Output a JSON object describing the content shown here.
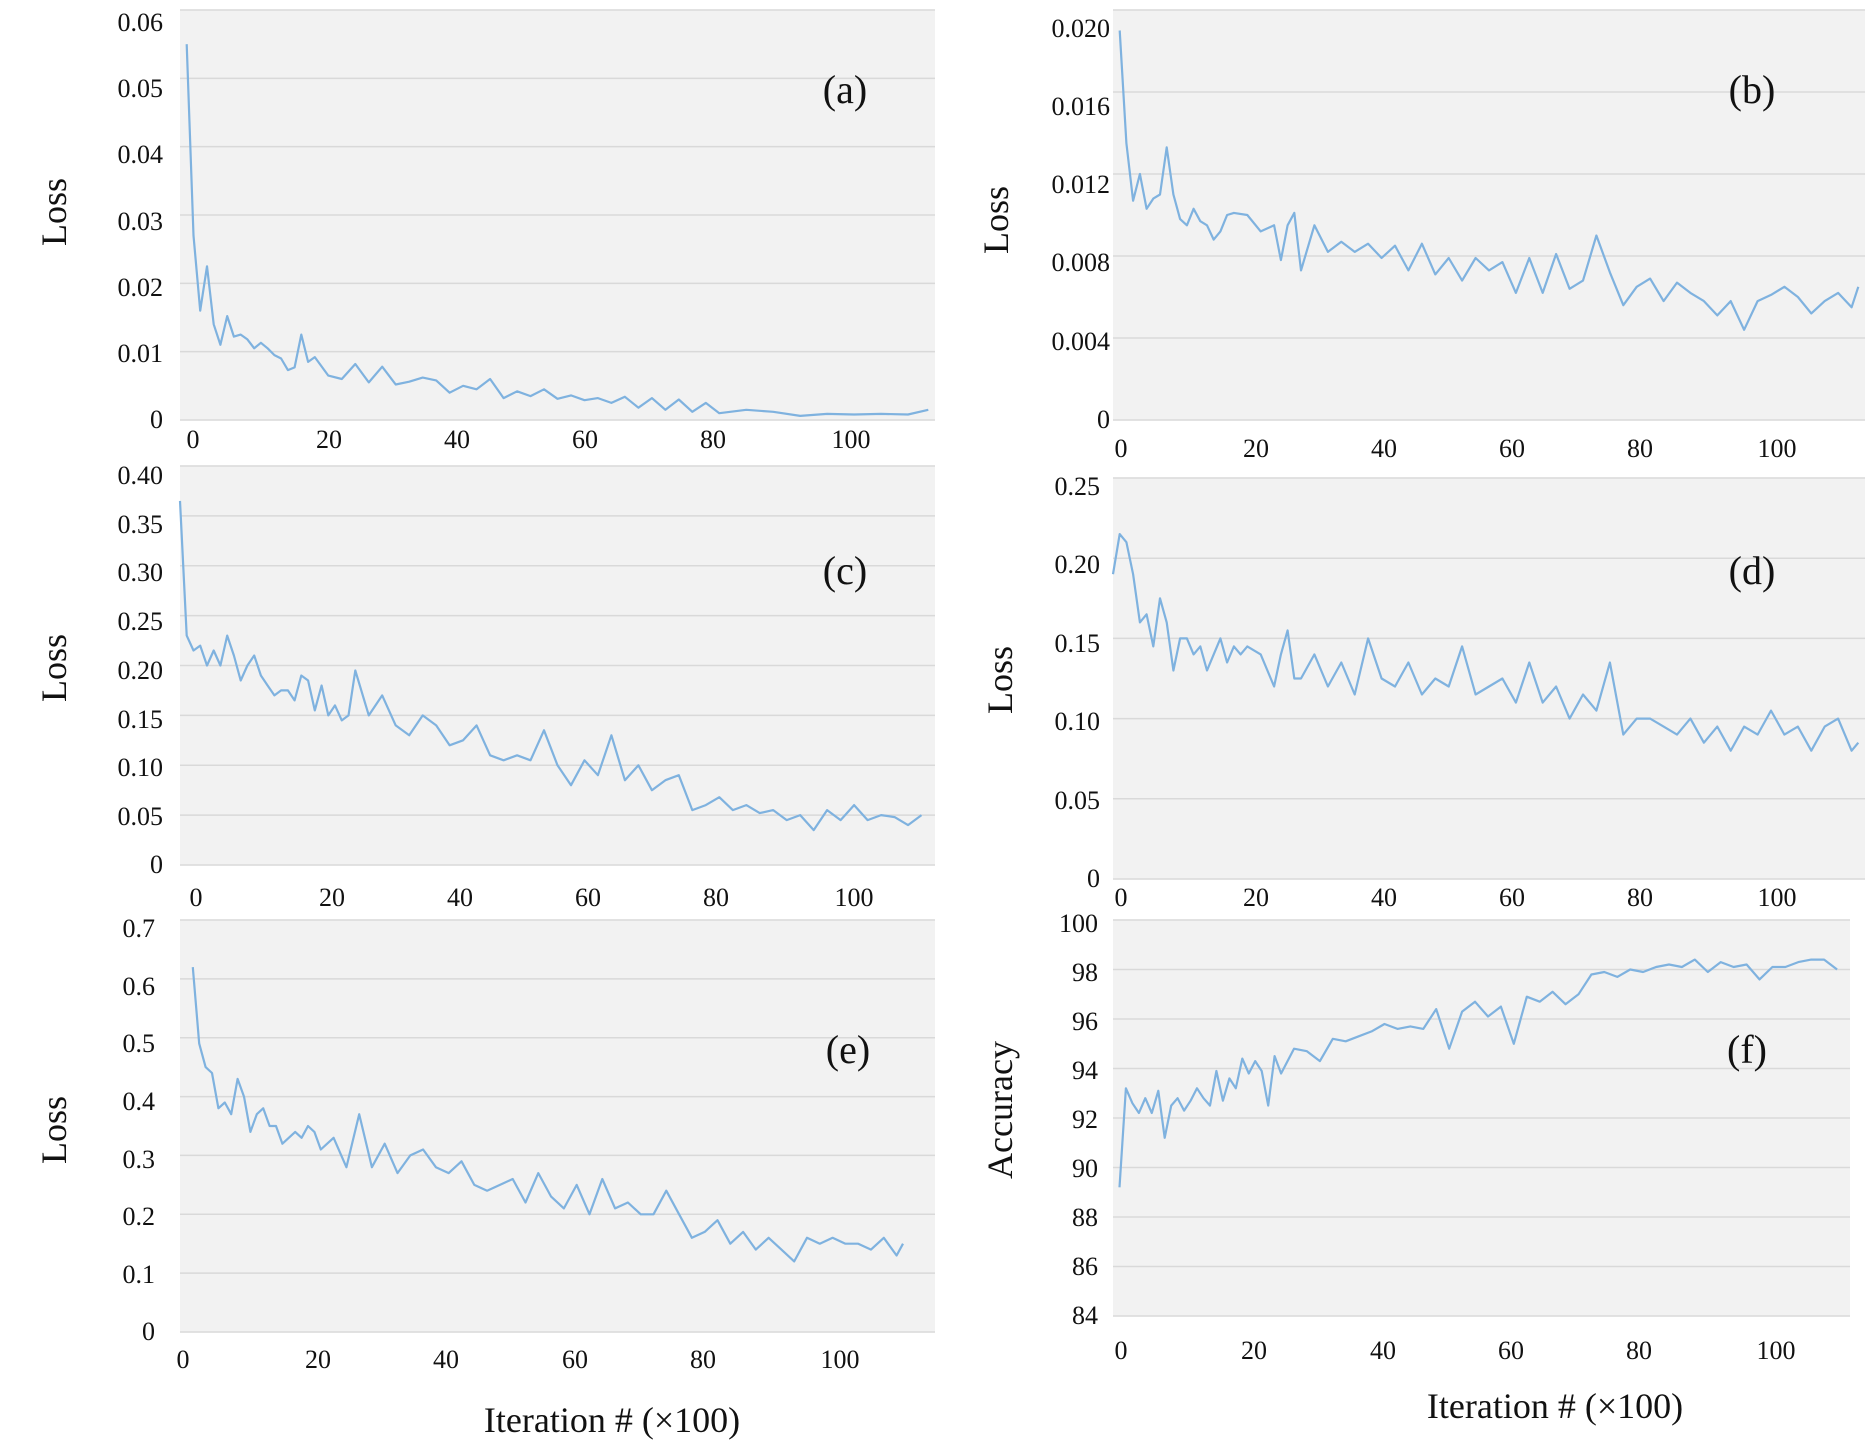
{
  "colors": {
    "plot_background": "#f2f2f2",
    "gridline": "#d9d9d9",
    "series_line": "#7fb2df"
  },
  "chart_data": [
    {
      "type": "line",
      "panel_label": "(a)",
      "ylabel": "Loss",
      "xlabel": "",
      "xlim": [
        0,
        112
      ],
      "ylim": [
        0,
        0.06
      ],
      "xticks": [
        0,
        20,
        40,
        60,
        80,
        100
      ],
      "xtick_labels": [
        "0",
        "20",
        "40",
        "60",
        "80",
        "100"
      ],
      "yticks": [
        0,
        0.01,
        0.02,
        0.03,
        0.04,
        0.05,
        0.06
      ],
      "ytick_labels": [
        "0",
        "0.01",
        "0.02",
        "0.03",
        "0.04",
        "0.05",
        "0.06"
      ],
      "grid": true,
      "series": [
        {
          "x": [
            1,
            2,
            3,
            4,
            5,
            6,
            7,
            8,
            9,
            10,
            11,
            12,
            13,
            14,
            15,
            16,
            17,
            18,
            19,
            20,
            22,
            24,
            26,
            28,
            30,
            32,
            34,
            36,
            38,
            40,
            42,
            44,
            46,
            48,
            50,
            52,
            54,
            56,
            58,
            60,
            62,
            64,
            66,
            68,
            70,
            72,
            74,
            76,
            78,
            80,
            84,
            88,
            92,
            96,
            100,
            104,
            108,
            111
          ],
          "y": [
            0.055,
            0.027,
            0.016,
            0.0225,
            0.014,
            0.011,
            0.0152,
            0.0122,
            0.0125,
            0.0118,
            0.0105,
            0.0113,
            0.0105,
            0.0095,
            0.009,
            0.0073,
            0.0077,
            0.0125,
            0.0085,
            0.0092,
            0.0065,
            0.006,
            0.0082,
            0.0055,
            0.0078,
            0.0052,
            0.0056,
            0.0062,
            0.0058,
            0.004,
            0.005,
            0.0045,
            0.006,
            0.0032,
            0.0042,
            0.0035,
            0.0045,
            0.0031,
            0.0036,
            0.0029,
            0.0032,
            0.0025,
            0.0034,
            0.0018,
            0.0032,
            0.0015,
            0.003,
            0.0012,
            0.0025,
            0.001,
            0.0015,
            0.0012,
            0.0006,
            0.0009,
            0.0008,
            0.0009,
            0.0008,
            0.0015
          ]
        }
      ]
    },
    {
      "type": "line",
      "panel_label": "(b)",
      "ylabel": "Loss",
      "xlabel": "",
      "xlim": [
        0,
        112
      ],
      "ylim": [
        0,
        0.02
      ],
      "xticks": [
        0,
        20,
        40,
        60,
        80,
        100
      ],
      "xtick_labels": [
        "0",
        "20",
        "40",
        "60",
        "80",
        "100"
      ],
      "yticks": [
        0,
        0.004,
        0.008,
        0.012,
        0.016,
        0.02
      ],
      "ytick_labels": [
        "0",
        "0.004",
        "0.008",
        "0.012",
        "0.016",
        "0.020"
      ],
      "grid": true,
      "series": [
        {
          "x": [
            1,
            2,
            3,
            4,
            5,
            6,
            7,
            8,
            9,
            10,
            11,
            12,
            13,
            14,
            15,
            16,
            17,
            18,
            20,
            22,
            24,
            25,
            26,
            27,
            28,
            30,
            32,
            34,
            36,
            38,
            40,
            42,
            44,
            46,
            48,
            50,
            52,
            54,
            56,
            58,
            60,
            62,
            64,
            66,
            68,
            70,
            72,
            74,
            76,
            78,
            80,
            82,
            84,
            86,
            88,
            90,
            92,
            94,
            96,
            98,
            100,
            102,
            104,
            106,
            108,
            110,
            111
          ],
          "y": [
            0.019,
            0.0135,
            0.0107,
            0.012,
            0.0103,
            0.0108,
            0.011,
            0.0133,
            0.011,
            0.0098,
            0.0095,
            0.0103,
            0.0097,
            0.0095,
            0.0088,
            0.0092,
            0.01,
            0.0101,
            0.01,
            0.0092,
            0.0095,
            0.0078,
            0.0095,
            0.0101,
            0.0073,
            0.0095,
            0.0082,
            0.0087,
            0.0082,
            0.0086,
            0.0079,
            0.0085,
            0.0073,
            0.0086,
            0.0071,
            0.0079,
            0.0068,
            0.0079,
            0.0073,
            0.0077,
            0.0062,
            0.0079,
            0.0062,
            0.0081,
            0.0064,
            0.0068,
            0.009,
            0.0072,
            0.0056,
            0.0065,
            0.0069,
            0.0058,
            0.0067,
            0.0062,
            0.0058,
            0.0051,
            0.0058,
            0.0044,
            0.0058,
            0.0061,
            0.0065,
            0.006,
            0.0052,
            0.0058,
            0.0062,
            0.0055,
            0.0065
          ]
        }
      ]
    },
    {
      "type": "line",
      "panel_label": "(c)",
      "ylabel": "Loss",
      "xlabel": "",
      "xlim": [
        0,
        112
      ],
      "ylim": [
        0,
        0.4
      ],
      "xticks": [
        0,
        20,
        40,
        60,
        80,
        100
      ],
      "xtick_labels": [
        "0",
        "20",
        "40",
        "60",
        "80",
        "100"
      ],
      "yticks": [
        0,
        0.05,
        0.1,
        0.15,
        0.2,
        0.25,
        0.3,
        0.35,
        0.4
      ],
      "ytick_labels": [
        "0",
        "0.05",
        "0.10",
        "0.15",
        "0.20",
        "0.25",
        "0.30",
        "0.35",
        "0.40"
      ],
      "grid": true,
      "series": [
        {
          "x": [
            0,
            1,
            2,
            3,
            4,
            5,
            6,
            7,
            8,
            9,
            10,
            11,
            12,
            13,
            14,
            15,
            16,
            17,
            18,
            19,
            20,
            21,
            22,
            23,
            24,
            25,
            26,
            28,
            30,
            32,
            34,
            36,
            38,
            40,
            42,
            44,
            46,
            48,
            50,
            52,
            54,
            56,
            58,
            60,
            62,
            64,
            66,
            68,
            70,
            72,
            74,
            76,
            78,
            80,
            82,
            84,
            86,
            88,
            90,
            92,
            94,
            96,
            98,
            100,
            102,
            104,
            106,
            108,
            110
          ],
          "y": [
            0.365,
            0.23,
            0.215,
            0.22,
            0.2,
            0.215,
            0.2,
            0.23,
            0.21,
            0.185,
            0.2,
            0.21,
            0.19,
            0.18,
            0.17,
            0.175,
            0.175,
            0.165,
            0.19,
            0.185,
            0.155,
            0.18,
            0.15,
            0.16,
            0.145,
            0.15,
            0.195,
            0.15,
            0.17,
            0.14,
            0.13,
            0.15,
            0.14,
            0.12,
            0.125,
            0.14,
            0.11,
            0.105,
            0.11,
            0.105,
            0.135,
            0.1,
            0.08,
            0.105,
            0.09,
            0.13,
            0.085,
            0.1,
            0.075,
            0.085,
            0.09,
            0.055,
            0.06,
            0.068,
            0.055,
            0.06,
            0.052,
            0.055,
            0.045,
            0.05,
            0.035,
            0.055,
            0.045,
            0.06,
            0.045,
            0.05,
            0.048,
            0.04,
            0.05
          ]
        }
      ]
    },
    {
      "type": "line",
      "panel_label": "(d)",
      "ylabel": "Loss",
      "xlabel": "",
      "xlim": [
        0,
        112
      ],
      "ylim": [
        0,
        0.25
      ],
      "xticks": [
        0,
        20,
        40,
        60,
        80,
        100
      ],
      "xtick_labels": [
        "0",
        "20",
        "40",
        "60",
        "80",
        "100"
      ],
      "yticks": [
        0,
        0.05,
        0.1,
        0.15,
        0.2,
        0.25
      ],
      "ytick_labels": [
        "0",
        "0.05",
        "0.10",
        "0.15",
        "0.20",
        "0.25"
      ],
      "grid": true,
      "series": [
        {
          "x": [
            0,
            1,
            2,
            3,
            4,
            5,
            6,
            7,
            8,
            9,
            10,
            11,
            12,
            13,
            14,
            15,
            16,
            17,
            18,
            19,
            20,
            22,
            24,
            25,
            26,
            27,
            28,
            30,
            32,
            34,
            36,
            38,
            40,
            42,
            44,
            46,
            48,
            50,
            52,
            54,
            56,
            58,
            60,
            62,
            64,
            66,
            68,
            70,
            72,
            74,
            76,
            78,
            80,
            82,
            84,
            86,
            88,
            90,
            92,
            94,
            96,
            98,
            100,
            102,
            104,
            106,
            108,
            110,
            111
          ],
          "y": [
            0.19,
            0.215,
            0.21,
            0.19,
            0.16,
            0.165,
            0.145,
            0.175,
            0.16,
            0.13,
            0.15,
            0.15,
            0.14,
            0.145,
            0.13,
            0.14,
            0.15,
            0.135,
            0.145,
            0.14,
            0.145,
            0.14,
            0.12,
            0.14,
            0.155,
            0.125,
            0.125,
            0.14,
            0.12,
            0.135,
            0.115,
            0.15,
            0.125,
            0.12,
            0.135,
            0.115,
            0.125,
            0.12,
            0.145,
            0.115,
            0.12,
            0.125,
            0.11,
            0.135,
            0.11,
            0.12,
            0.1,
            0.115,
            0.105,
            0.135,
            0.09,
            0.1,
            0.1,
            0.095,
            0.09,
            0.1,
            0.085,
            0.095,
            0.08,
            0.095,
            0.09,
            0.105,
            0.09,
            0.095,
            0.08,
            0.095,
            0.1,
            0.08,
            0.085
          ]
        }
      ]
    },
    {
      "type": "line",
      "panel_label": "(e)",
      "ylabel": "Loss",
      "xlabel": "Iteration # (×100)",
      "xlim": [
        0,
        118
      ],
      "ylim": [
        0,
        0.7
      ],
      "xticks": [
        0,
        20,
        40,
        60,
        80,
        100
      ],
      "xtick_labels": [
        "0",
        "20",
        "40",
        "60",
        "80",
        "100"
      ],
      "yticks": [
        0,
        0.1,
        0.2,
        0.3,
        0.4,
        0.5,
        0.6,
        0.7
      ],
      "ytick_labels": [
        "0",
        "0.1",
        "0.2",
        "0.3",
        "0.4",
        "0.5",
        "0.6",
        "0.7"
      ],
      "grid": true,
      "series": [
        {
          "x": [
            2,
            3,
            4,
            5,
            6,
            7,
            8,
            9,
            10,
            11,
            12,
            13,
            14,
            15,
            16,
            17,
            18,
            19,
            20,
            21,
            22,
            24,
            26,
            28,
            30,
            32,
            34,
            36,
            38,
            40,
            42,
            44,
            46,
            48,
            50,
            52,
            54,
            56,
            58,
            60,
            62,
            64,
            66,
            68,
            70,
            72,
            74,
            76,
            78,
            80,
            82,
            84,
            86,
            88,
            90,
            92,
            94,
            96,
            98,
            100,
            102,
            104,
            106,
            108,
            110,
            112,
            113
          ],
          "y": [
            0.62,
            0.49,
            0.45,
            0.44,
            0.38,
            0.39,
            0.37,
            0.43,
            0.4,
            0.34,
            0.37,
            0.38,
            0.35,
            0.35,
            0.32,
            0.33,
            0.34,
            0.33,
            0.35,
            0.34,
            0.31,
            0.33,
            0.28,
            0.37,
            0.28,
            0.32,
            0.27,
            0.3,
            0.31,
            0.28,
            0.27,
            0.29,
            0.25,
            0.24,
            0.25,
            0.26,
            0.22,
            0.27,
            0.23,
            0.21,
            0.25,
            0.2,
            0.26,
            0.21,
            0.22,
            0.2,
            0.2,
            0.24,
            0.2,
            0.16,
            0.17,
            0.19,
            0.15,
            0.17,
            0.14,
            0.16,
            0.14,
            0.12,
            0.16,
            0.15,
            0.16,
            0.15,
            0.15,
            0.14,
            0.16,
            0.13,
            0.15
          ]
        }
      ]
    },
    {
      "type": "line",
      "panel_label": "(f)",
      "ylabel": "Accuracy",
      "xlabel": "Iteration # (×100)",
      "xlim": [
        0,
        114
      ],
      "ylim": [
        84,
        100
      ],
      "xticks": [
        0,
        20,
        40,
        60,
        80,
        100
      ],
      "xtick_labels": [
        "0",
        "20",
        "40",
        "60",
        "80",
        "100"
      ],
      "yticks": [
        84,
        86,
        88,
        90,
        92,
        94,
        96,
        98,
        100
      ],
      "ytick_labels": [
        "84",
        "86",
        "88",
        "90",
        "92",
        "94",
        "96",
        "98",
        "100"
      ],
      "grid": true,
      "series": [
        {
          "x": [
            1,
            2,
            3,
            4,
            5,
            6,
            7,
            8,
            9,
            10,
            11,
            12,
            13,
            14,
            15,
            16,
            17,
            18,
            19,
            20,
            21,
            22,
            23,
            24,
            25,
            26,
            28,
            30,
            32,
            34,
            36,
            38,
            40,
            42,
            44,
            46,
            48,
            50,
            52,
            54,
            56,
            58,
            60,
            62,
            64,
            66,
            68,
            70,
            72,
            74,
            76,
            78,
            80,
            82,
            84,
            86,
            88,
            90,
            92,
            94,
            96,
            98,
            100,
            102,
            104,
            106,
            108,
            110,
            112
          ],
          "y": [
            89.2,
            93.2,
            92.6,
            92.2,
            92.8,
            92.2,
            93.1,
            91.2,
            92.5,
            92.8,
            92.3,
            92.7,
            93.2,
            92.8,
            92.5,
            93.9,
            92.7,
            93.6,
            93.2,
            94.4,
            93.8,
            94.3,
            93.9,
            92.5,
            94.5,
            93.8,
            94.8,
            94.7,
            94.3,
            95.2,
            95.1,
            95.3,
            95.5,
            95.8,
            95.6,
            95.7,
            95.6,
            96.4,
            94.8,
            96.3,
            96.7,
            96.1,
            96.5,
            95.0,
            96.9,
            96.7,
            97.1,
            96.6,
            97.0,
            97.8,
            97.9,
            97.7,
            98.0,
            97.9,
            98.1,
            98.2,
            98.1,
            98.4,
            97.9,
            98.3,
            98.1,
            98.2,
            97.6,
            98.1,
            98.1,
            98.3,
            98.4,
            98.4,
            98.0
          ]
        }
      ]
    }
  ]
}
